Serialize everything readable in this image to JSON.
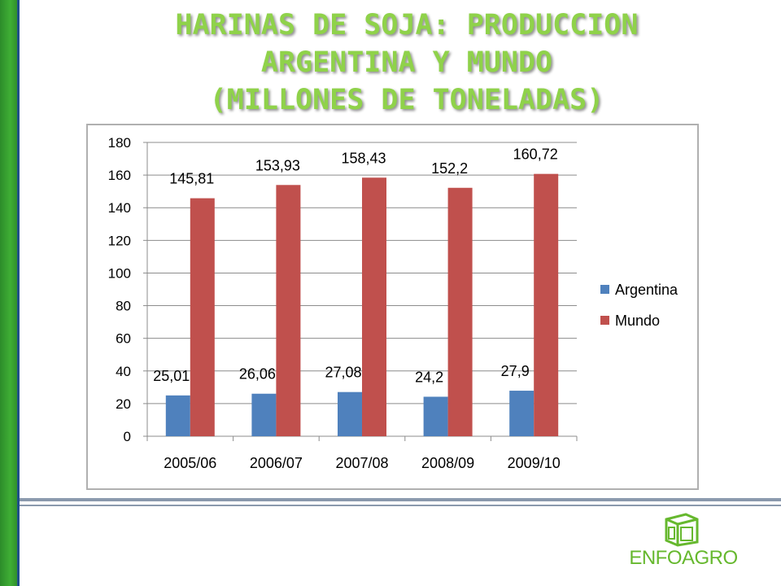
{
  "title_lines": [
    "HARINAS DE SOJA: PRODUCCION",
    "ARGENTINA Y  MUNDO",
    "(MILLONES DE TONELADAS)"
  ],
  "logo": {
    "text": "ENFOAGRO",
    "icon": "cube-logo-icon"
  },
  "colors": {
    "argentina": "#4f81bd",
    "mundo": "#c0504d",
    "title": "#8fd24a",
    "accent_green": "#3fae35"
  },
  "chart_data": {
    "type": "bar",
    "categories": [
      "2005/06",
      "2006/07",
      "2007/08",
      "2008/09",
      "2009/10"
    ],
    "series": [
      {
        "name": "Argentina",
        "values": [
          25.01,
          26.06,
          27.08,
          24.2,
          27.9
        ],
        "labels": [
          "25,01",
          "26,06",
          "27,08",
          "24,2",
          "27,9"
        ]
      },
      {
        "name": "Mundo",
        "values": [
          145.81,
          153.93,
          158.43,
          152.2,
          160.72
        ],
        "labels": [
          "145,81",
          "153,93",
          "158,43",
          "152,2",
          "160,72"
        ]
      }
    ],
    "ylim": [
      0,
      180
    ],
    "yticks": [
      0,
      20,
      40,
      60,
      80,
      100,
      120,
      140,
      160,
      180
    ],
    "grid": true,
    "legend": "right"
  }
}
